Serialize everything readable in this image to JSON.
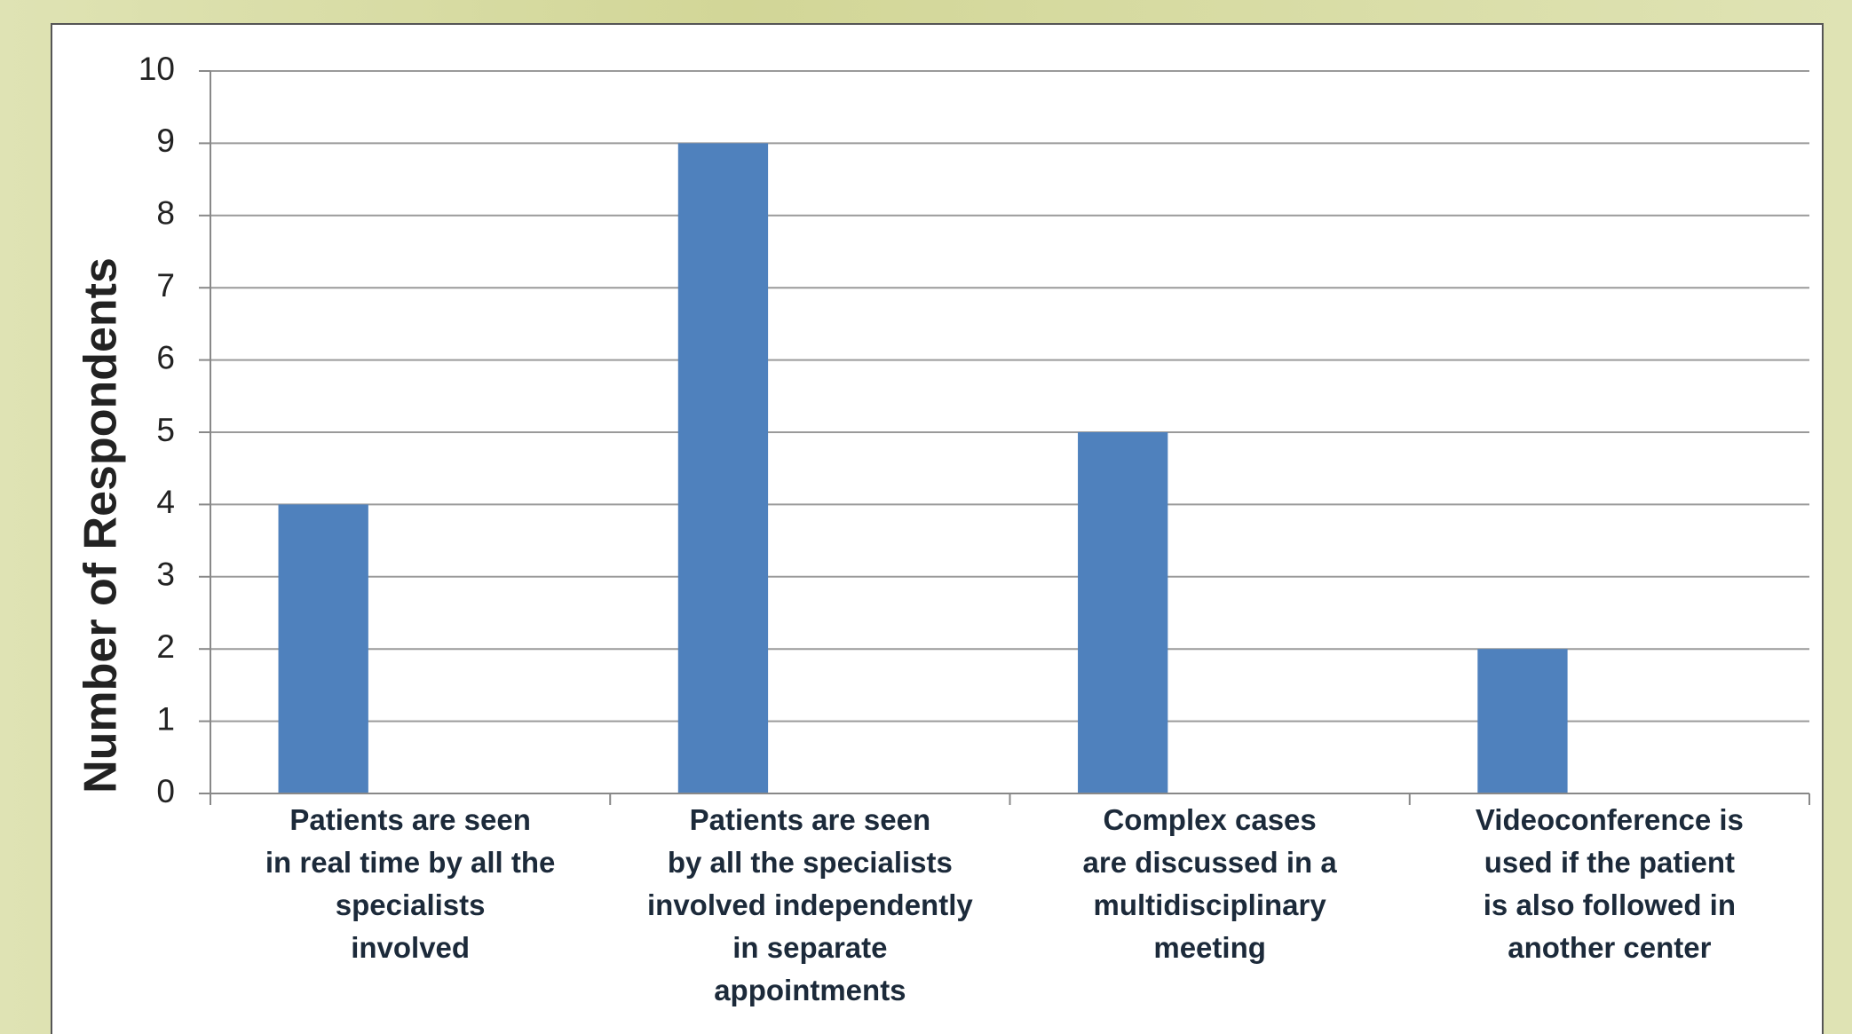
{
  "chart_data": {
    "type": "bar",
    "y_label": "Number of Respondents",
    "categories": [
      "Patients are seen\nin real time by all the\nspecialists\ninvolved",
      "Patients are seen\nby all the specialists\ninvolved independently\nin separate\nappointments",
      "Complex cases\nare discussed in a\nmultidisciplinary\nmeeting",
      "Videoconference is\nused if the patient\nis also followed in\nanother center"
    ],
    "values": [
      4,
      9,
      5,
      2
    ],
    "color": "#4f81bd",
    "ylim": [
      0,
      10
    ],
    "yticks": [
      0,
      1,
      2,
      3,
      4,
      5,
      6,
      7,
      8,
      9,
      10
    ],
    "grid": true
  }
}
